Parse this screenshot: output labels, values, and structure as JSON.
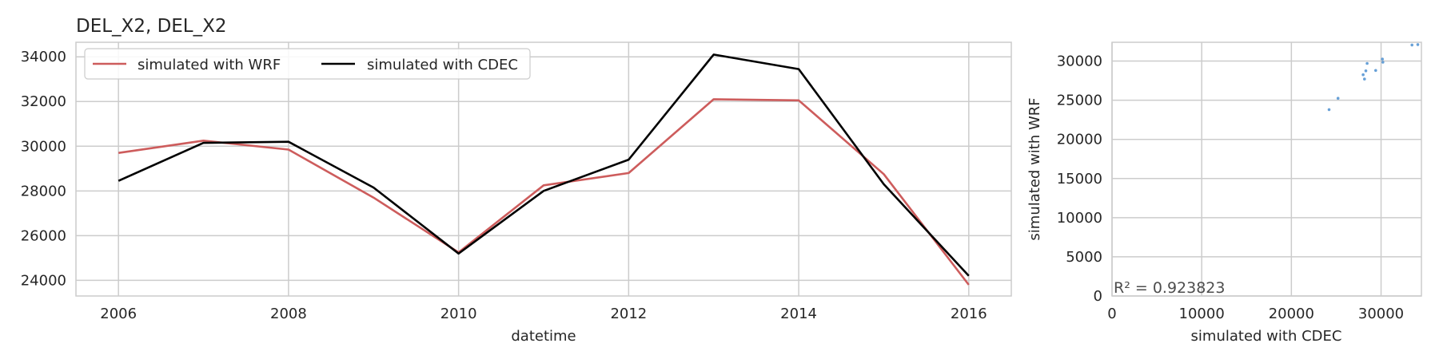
{
  "chart_data": [
    {
      "type": "line",
      "title": "DEL_X2, DEL_X2",
      "xlabel": "datetime",
      "ylabel": "",
      "x": [
        2006,
        2007,
        2008,
        2009,
        2010,
        2011,
        2012,
        2013,
        2014,
        2015,
        2016
      ],
      "xticks": [
        "2006",
        "2008",
        "2010",
        "2012",
        "2014",
        "2016"
      ],
      "xlim": [
        2005.5,
        2016.5
      ],
      "yticks": [
        "24000",
        "26000",
        "28000",
        "30000",
        "32000",
        "34000"
      ],
      "ylim": [
        23300,
        34650
      ],
      "grid": true,
      "legend": {
        "placement": "top-left",
        "columns": 2
      },
      "series": [
        {
          "name": "simulated with WRF",
          "color": "#cd5c5c",
          "values": [
            29700,
            30250,
            29850,
            27700,
            25250,
            28250,
            28800,
            32100,
            32050,
            28750,
            23800
          ]
        },
        {
          "name": "simulated with CDEC",
          "color": "#000000",
          "values": [
            28450,
            30150,
            30200,
            28150,
            25200,
            28000,
            29400,
            34100,
            33450,
            28300,
            24200
          ]
        }
      ]
    },
    {
      "type": "scatter",
      "xlabel": "simulated with CDEC",
      "ylabel": "simulated with WRF",
      "xlim": [
        0,
        34500
      ],
      "ylim": [
        0,
        32400
      ],
      "xticks": [
        "0",
        "10000",
        "20000",
        "30000"
      ],
      "yticks": [
        "0",
        "5000",
        "10000",
        "15000",
        "20000",
        "25000",
        "30000"
      ],
      "grid": true,
      "color": "#4c8fd0",
      "annotation": "R² = 0.923823",
      "points": [
        {
          "x": 24200,
          "y": 23800
        },
        {
          "x": 25200,
          "y": 25250
        },
        {
          "x": 28000,
          "y": 28250
        },
        {
          "x": 28150,
          "y": 27700
        },
        {
          "x": 28300,
          "y": 28750
        },
        {
          "x": 28450,
          "y": 29700
        },
        {
          "x": 29400,
          "y": 28800
        },
        {
          "x": 30150,
          "y": 30250
        },
        {
          "x": 30200,
          "y": 29850
        },
        {
          "x": 33450,
          "y": 32050
        },
        {
          "x": 34100,
          "y": 32100
        }
      ]
    }
  ]
}
